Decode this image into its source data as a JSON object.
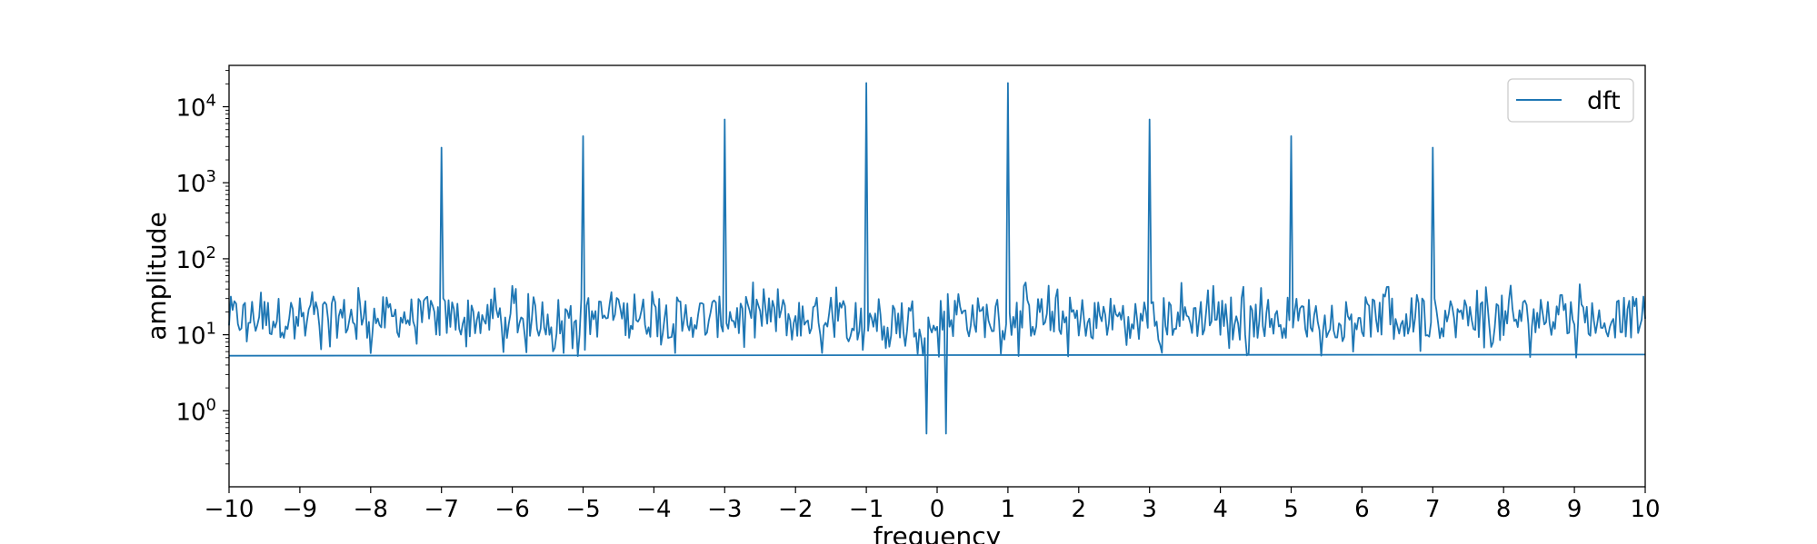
{
  "chart_data": {
    "type": "line",
    "title": "",
    "xlabel": "frequency",
    "ylabel": "amplitude",
    "xlim": [
      -10,
      10
    ],
    "ylim": [
      0.1,
      35000
    ],
    "yscale": "log",
    "grid": false,
    "legend_position": "top-right",
    "colors": {
      "line": "#1f77b4",
      "axes": "#000000",
      "background": "#ffffff"
    },
    "x_ticks": [
      -10,
      -9,
      -8,
      -7,
      -6,
      -5,
      -4,
      -3,
      -2,
      -1,
      0,
      1,
      2,
      3,
      4,
      5,
      6,
      7,
      8,
      9,
      10
    ],
    "x_tick_labels": [
      "−10",
      "−9",
      "−8",
      "−7",
      "−6",
      "−5",
      "−4",
      "−3",
      "−2",
      "−1",
      "0",
      "1",
      "2",
      "3",
      "4",
      "5",
      "6",
      "7",
      "8",
      "9",
      "10"
    ],
    "y_ticks": [
      {
        "value": 1,
        "base": "10",
        "exp": "0"
      },
      {
        "value": 10,
        "base": "10",
        "exp": "1"
      },
      {
        "value": 100,
        "base": "10",
        "exp": "2"
      },
      {
        "value": 1000,
        "base": "10",
        "exp": "3"
      },
      {
        "value": 10000,
        "base": "10",
        "exp": "4"
      }
    ],
    "series": [
      {
        "name": "dft",
        "noise_floor": [
          5,
          50
        ],
        "peaks": [
          {
            "x": -7,
            "y": 2900
          },
          {
            "x": -5,
            "y": 4100
          },
          {
            "x": -3,
            "y": 6800
          },
          {
            "x": -1,
            "y": 20500
          },
          {
            "x": 1,
            "y": 20500
          },
          {
            "x": 3,
            "y": 6800
          },
          {
            "x": 5,
            "y": 4100
          },
          {
            "x": 7,
            "y": 2900
          }
        ],
        "dips": [
          {
            "x": -0.15,
            "y": 0.5
          },
          {
            "x": 0.12,
            "y": 0.5
          }
        ],
        "baseline": {
          "x": [
            -10,
            10
          ],
          "y": [
            5.3,
            5.5
          ]
        }
      }
    ]
  }
}
